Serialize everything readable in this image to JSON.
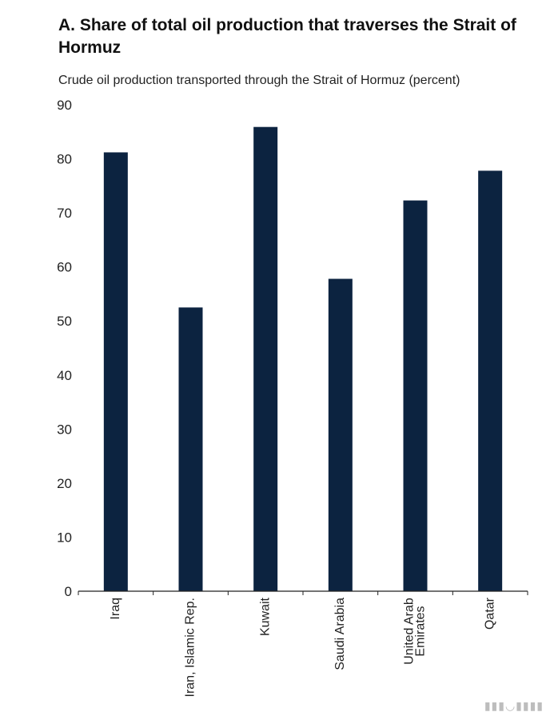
{
  "chart_data": {
    "type": "bar",
    "title": "A. Share of total oil production that traverses the Strait of Hormuz",
    "subtitle": "Crude oil production transported through the Strait of Hormuz (percent)",
    "categories": [
      "Iraq",
      "Iran, Islamic Rep.",
      "Kuwait",
      "Saudi Arabia",
      "United Arab Emirates",
      "Qatar"
    ],
    "category_lines": [
      [
        "Iraq"
      ],
      [
        "Iran, Islamic Rep."
      ],
      [
        "Kuwait"
      ],
      [
        "Saudi Arabia"
      ],
      [
        "United Arab",
        "Emirates"
      ],
      [
        "Qatar"
      ]
    ],
    "values": [
      81.2,
      52.5,
      85.9,
      57.8,
      72.3,
      77.8
    ],
    "ylim": [
      0,
      90
    ],
    "yticks": [
      0,
      10,
      20,
      30,
      40,
      50,
      60,
      70,
      80,
      90
    ],
    "xlabel": "",
    "ylabel": "",
    "grid": false,
    "bar_color": "#0c2340"
  }
}
